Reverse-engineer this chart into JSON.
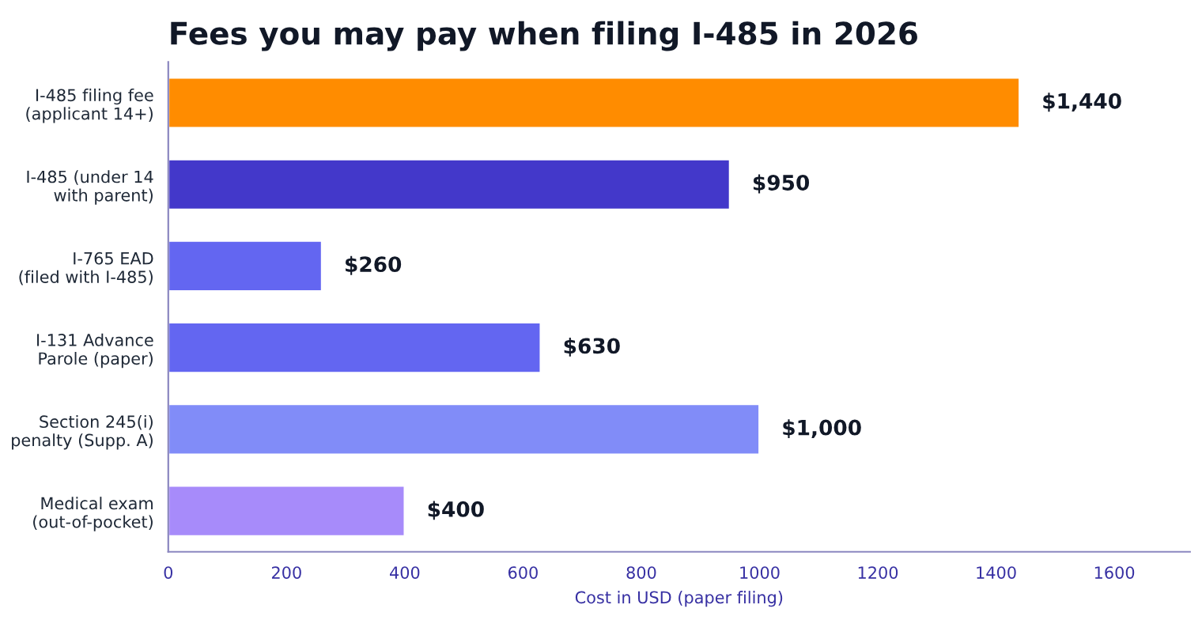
{
  "chart_data": {
    "type": "bar",
    "orientation": "horizontal",
    "title": "Fees you may pay when filing I-485 in 2026",
    "xlabel": "Cost in USD (paper filing)",
    "categories": [
      "I-485 filing fee\n(applicant 14+)",
      "I-485 (under 14\nwith parent)",
      "I-765 EAD\n(filed with I-485)",
      "I-131 Advance\nParole (paper)",
      "Section 245(i)\npenalty (Supp. A)",
      "Medical exam\n(out-of-pocket)"
    ],
    "values": [
      1440,
      950,
      260,
      630,
      1000,
      400
    ],
    "colors": [
      "#ff8c00",
      "#4338ca",
      "#6366f1",
      "#6366f1",
      "#818cf8",
      "#a78bfa"
    ],
    "value_labels": [
      "$1,440",
      "$950",
      "$260",
      "$630",
      "$1,000",
      "$400"
    ],
    "xlim": [
      0,
      1728
    ],
    "xticks": [
      0,
      200,
      400,
      600,
      800,
      1000,
      1200,
      1400,
      1600
    ],
    "grid": false,
    "legend": false
  }
}
